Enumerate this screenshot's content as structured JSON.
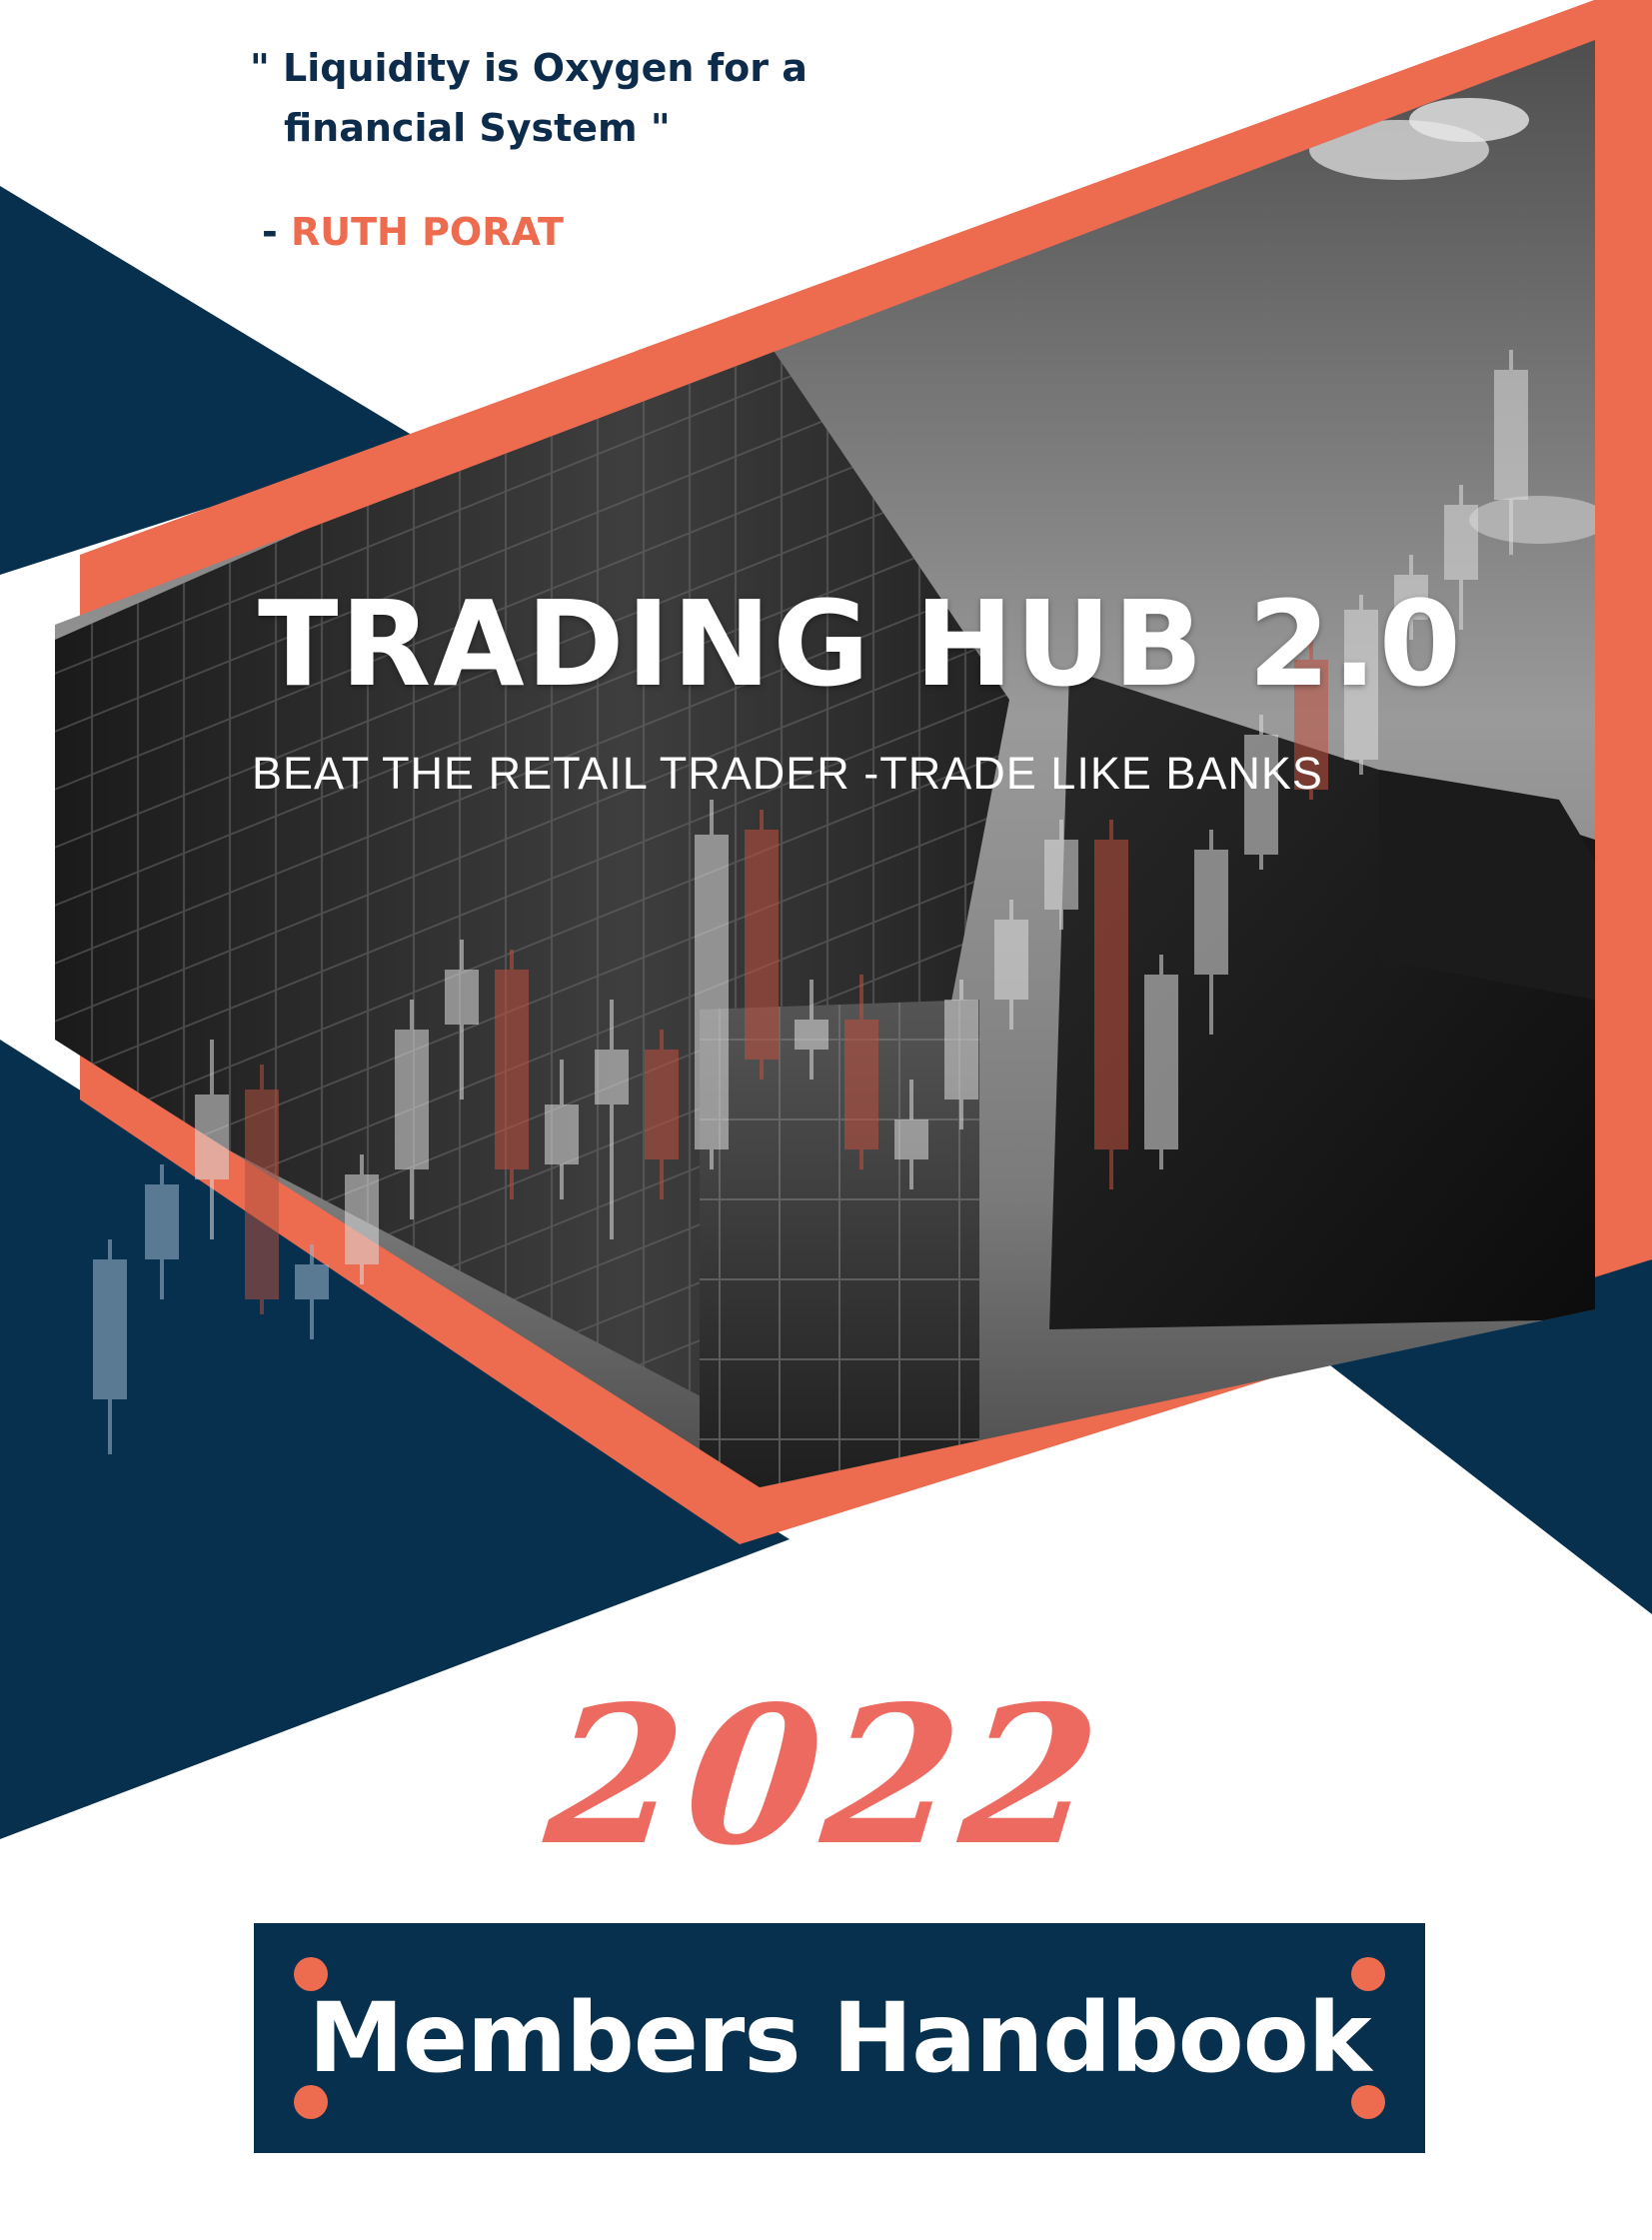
{
  "quote": {
    "line1": "\" Liquidity is Oxygen for a",
    "line2": "financial System \"",
    "author_prefix": "- ",
    "author_name": "RUTH PORAT"
  },
  "cover": {
    "title": "TRADING HUB 2.0",
    "subtitle": "BEAT  THE RETAIL TRADER -TRADE LIKE BANKS",
    "year": "2022",
    "handbook_label": "Members Handbook"
  },
  "colors": {
    "navy": "#06304d",
    "orange": "#ed6b4f",
    "year_red": "#ec6a60"
  },
  "decoration": {
    "photo": "skyscrapers-looking-up-grayscale",
    "overlay": "candlestick-chart-icon"
  }
}
